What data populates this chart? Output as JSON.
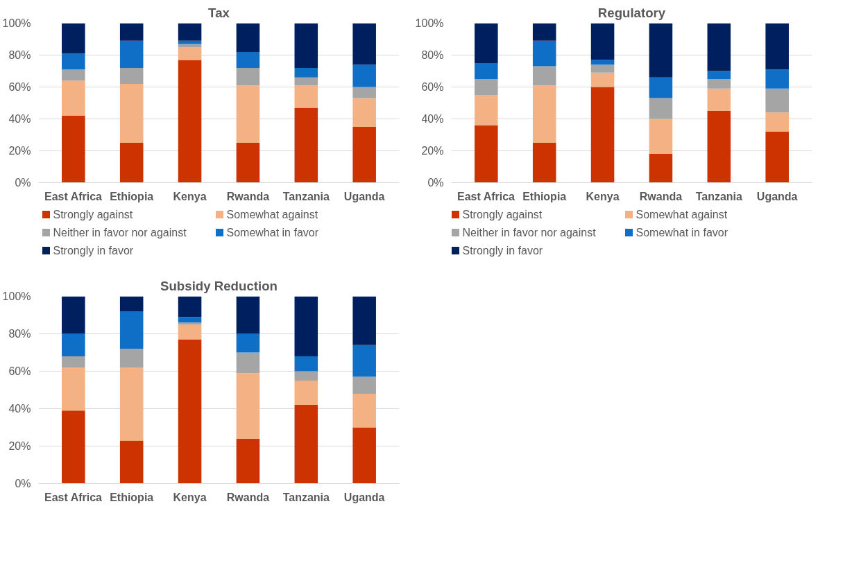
{
  "chart_data": [
    {
      "type": "bar",
      "title": "Tax",
      "stacked": true,
      "grid": "y",
      "legend": "bottom",
      "categories": [
        "East Africa",
        "Ethiopia",
        "Kenya",
        "Rwanda",
        "Tanzania",
        "Uganda"
      ],
      "ylim": [
        0,
        100
      ],
      "yticks": [
        {
          "value": 0,
          "label": "0%"
        },
        {
          "value": 20,
          "label": "20%"
        },
        {
          "value": 40,
          "label": "40%"
        },
        {
          "value": 60,
          "label": "60%"
        },
        {
          "value": 80,
          "label": "80%"
        },
        {
          "value": 100,
          "label": "100%"
        }
      ],
      "series": [
        {
          "name": "Strongly against",
          "color": "#cc3300",
          "values": [
            42,
            25,
            77,
            25,
            47,
            35
          ]
        },
        {
          "name": "Somewhat against",
          "color": "#f4b183",
          "values": [
            22,
            37,
            8,
            36,
            14,
            18
          ]
        },
        {
          "name": "Neither in favor nor against",
          "color": "#a5a5a5",
          "values": [
            7,
            10,
            2,
            11,
            5,
            7
          ]
        },
        {
          "name": "Somewhat in favor",
          "color": "#0f6fc6",
          "values": [
            10,
            17,
            2,
            10,
            6,
            14
          ]
        },
        {
          "name": "Strongly in favor",
          "color": "#001f5f",
          "values": [
            19,
            11,
            11,
            18,
            28,
            26
          ]
        }
      ]
    },
    {
      "type": "bar",
      "title": "Regulatory",
      "stacked": true,
      "grid": "y",
      "legend": "bottom",
      "categories": [
        "East Africa",
        "Ethiopia",
        "Kenya",
        "Rwanda",
        "Tanzania",
        "Uganda"
      ],
      "ylim": [
        0,
        100
      ],
      "yticks": [
        {
          "value": 0,
          "label": "0%"
        },
        {
          "value": 20,
          "label": "20%"
        },
        {
          "value": 40,
          "label": "40%"
        },
        {
          "value": 60,
          "label": "60%"
        },
        {
          "value": 80,
          "label": "80%"
        },
        {
          "value": 100,
          "label": "100%"
        }
      ],
      "series": [
        {
          "name": "Strongly against",
          "color": "#cc3300",
          "values": [
            36,
            25,
            60,
            18,
            45,
            32
          ]
        },
        {
          "name": "Somewhat against",
          "color": "#f4b183",
          "values": [
            19,
            36,
            9,
            22,
            14,
            12
          ]
        },
        {
          "name": "Neither in favor nor against",
          "color": "#a5a5a5",
          "values": [
            10,
            12,
            5,
            13,
            6,
            15
          ]
        },
        {
          "name": "Somewhat in favor",
          "color": "#0f6fc6",
          "values": [
            10,
            16,
            3,
            13,
            5,
            12
          ]
        },
        {
          "name": "Strongly in favor",
          "color": "#001f5f",
          "values": [
            25,
            11,
            23,
            34,
            30,
            29
          ]
        }
      ]
    },
    {
      "type": "bar",
      "title": "Subsidy Reduction",
      "stacked": true,
      "grid": "y",
      "categories": [
        "East Africa",
        "Ethiopia",
        "Kenya",
        "Rwanda",
        "Tanzania",
        "Uganda"
      ],
      "ylim": [
        0,
        100
      ],
      "yticks": [
        {
          "value": 0,
          "label": "0%"
        },
        {
          "value": 20,
          "label": "20%"
        },
        {
          "value": 40,
          "label": "40%"
        },
        {
          "value": 60,
          "label": "60%"
        },
        {
          "value": 80,
          "label": "80%"
        },
        {
          "value": 100,
          "label": "100%"
        }
      ],
      "series": [
        {
          "color": "#cc3300",
          "values": [
            39,
            23,
            77,
            24,
            42,
            30
          ]
        },
        {
          "color": "#f4b183",
          "values": [
            23,
            39,
            8,
            35,
            13,
            18
          ]
        },
        {
          "color": "#a5a5a5",
          "values": [
            6,
            10,
            1,
            11,
            5,
            9
          ]
        },
        {
          "color": "#0f6fc6",
          "values": [
            12,
            20,
            3,
            10,
            8,
            17
          ]
        },
        {
          "color": "#001f5f",
          "values": [
            20,
            8,
            11,
            20,
            32,
            26
          ]
        }
      ]
    }
  ]
}
